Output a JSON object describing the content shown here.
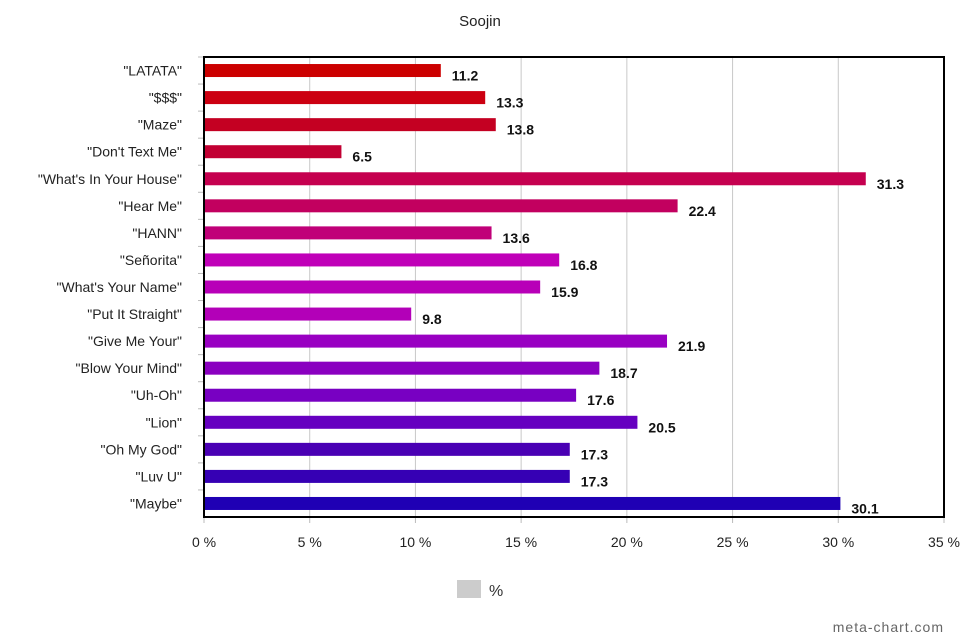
{
  "chart_data": {
    "type": "bar",
    "orientation": "horizontal",
    "title": "Soojin",
    "categories": [
      "\"LATATA\"",
      "\"$$$\"",
      "\"Maze\"",
      "\"Don't Text Me\"",
      "\"What's In Your House\"",
      "\"Hear Me\"",
      "\"HANN\"",
      "\"Señorita\"",
      "\"What's Your Name\"",
      "\"Put It Straight\"",
      "\"Give Me Your\"",
      "\"Blow Your Mind\"",
      "\"Uh-Oh\"",
      "\"Lion\"",
      "\"Oh My God\"",
      "\"Luv U\"",
      "\"Maybe\""
    ],
    "value_labels": [
      "11.2",
      "13.3",
      "13.8",
      "6.5",
      "31.3",
      "22.4",
      "13.6",
      "16.8",
      "15.9",
      "9.8",
      "21.9",
      "18.7",
      "17.6",
      "20.5",
      "17.3",
      "17.3",
      "30.1"
    ],
    "values": [
      11.2,
      13.3,
      13.8,
      6.5,
      31.3,
      22.4,
      13.6,
      16.8,
      15.9,
      9.8,
      21.9,
      18.7,
      17.6,
      20.5,
      17.3,
      17.3,
      30.1
    ],
    "colors": [
      "#cc0000",
      "#cc0011",
      "#c40022",
      "#c20033",
      "#c5004f",
      "#c2005f",
      "#c00078",
      "#c000b8",
      "#b800b8",
      "#b300b8",
      "#9900c2",
      "#8a00c0",
      "#7800c2",
      "#6600c0",
      "#4a00b4",
      "#3600b4",
      "#1f00b4"
    ],
    "xlim": [
      0,
      35
    ],
    "xticks": [
      "0 %",
      "5 %",
      "10 %",
      "15 %",
      "20 %",
      "25 %",
      "30 %",
      "35 %"
    ],
    "grid": true,
    "legend": {
      "label": "%",
      "placement": "bottom-center",
      "color": "#cccccc"
    }
  },
  "watermark": "meta-chart.com"
}
